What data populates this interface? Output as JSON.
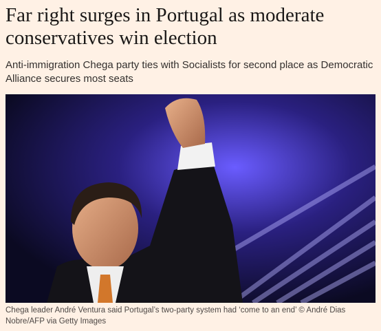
{
  "article": {
    "headline": "Far right surges in Portugal as moderate conservatives win election",
    "standfirst": "Anti-immigration Chega party ties with Socialists for second place as Democratic Alliance secures most seats",
    "caption": "Chega leader André Ventura said Portugal’s two-party system had ‘come to an end’ © André Dias Nobre/AFP via Getty Images"
  }
}
